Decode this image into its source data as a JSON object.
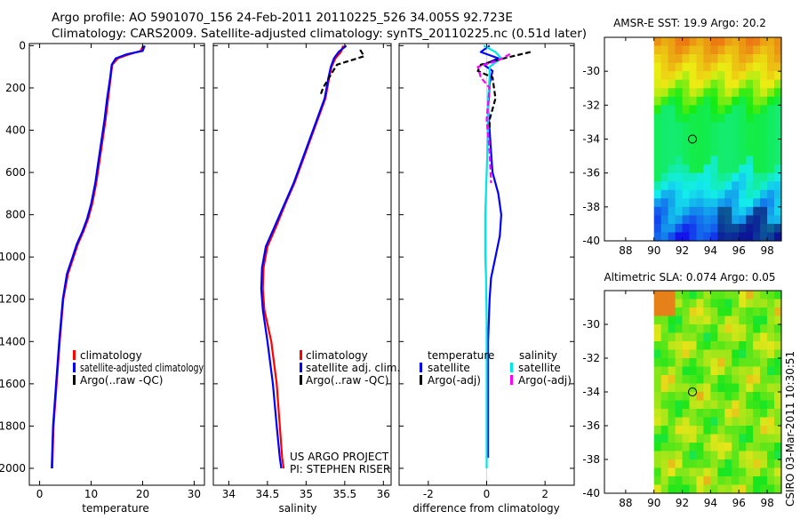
{
  "header": {
    "line1": "Argo profile: AO 5901070_156 24-Feb-2011 20110225_526 34.005S 92.723E",
    "line2": "Climatology: CARS2009. Satellite-adjusted climatology: synTS_20110225.nc (0.51d later)"
  },
  "colors": {
    "red": "#ff0000",
    "blue": "#0000ff",
    "black": "#000000",
    "cyan": "#00e5e5",
    "magenta": "#ff00ff"
  },
  "depth_axis": {
    "ticks": [
      0,
      200,
      400,
      600,
      800,
      1000,
      1200,
      1400,
      1600,
      1800,
      2000
    ],
    "range": [
      -10,
      2080
    ]
  },
  "chart_data": [
    {
      "type": "line",
      "id": "temperature",
      "xlabel": "temperature",
      "xticks": [
        0,
        10,
        20,
        30
      ],
      "xlim": [
        -2,
        32
      ],
      "legend": [
        "climatology",
        "satellite-adjusted climatology",
        "Argo(..raw -QC)"
      ],
      "series": [
        {
          "name": "climatology",
          "color": "red",
          "x": [
            20.1,
            19.6,
            17.5,
            15.2,
            14.1,
            13.8,
            13.3,
            12.8,
            12.2,
            11.6,
            11.0,
            10.2,
            9.4,
            8.5,
            7.4,
            6.6,
            5.5,
            4.6,
            3.9,
            3.3,
            2.7,
            2.45
          ],
          "y": [
            0,
            25,
            40,
            60,
            90,
            150,
            250,
            350,
            450,
            550,
            650,
            750,
            820,
            880,
            940,
            1000,
            1080,
            1200,
            1400,
            1600,
            1800,
            2000
          ]
        },
        {
          "name": "satellite",
          "color": "blue",
          "x": [
            20.4,
            20.0,
            17.0,
            14.8,
            14.0,
            13.7,
            13.1,
            12.6,
            12.0,
            11.4,
            10.8,
            10.0,
            9.2,
            8.3,
            7.2,
            6.4,
            5.3,
            4.5,
            3.8,
            3.2,
            2.6,
            2.35
          ],
          "y": [
            0,
            25,
            40,
            60,
            90,
            150,
            250,
            350,
            450,
            550,
            650,
            750,
            820,
            880,
            940,
            1000,
            1080,
            1200,
            1400,
            1600,
            1800,
            2000
          ]
        }
      ]
    },
    {
      "type": "line",
      "id": "salinity",
      "xlabel": "salinity",
      "xticks": [
        34,
        34.5,
        35,
        35.5,
        36
      ],
      "xlim": [
        33.8,
        36.1
      ],
      "legend": [
        "climatology",
        "satellite adj. clim.",
        "Argo(..raw -QC)"
      ],
      "series": [
        {
          "name": "climatology",
          "color": "red",
          "x": [
            35.48,
            35.45,
            35.38,
            35.33,
            35.3,
            35.25,
            35.15,
            35.05,
            34.95,
            34.85,
            34.73,
            34.62,
            34.5,
            34.45,
            34.44,
            34.46,
            34.55,
            34.62,
            34.66,
            34.69,
            34.71
          ],
          "y": [
            0,
            30,
            60,
            100,
            150,
            250,
            350,
            450,
            550,
            650,
            750,
            850,
            950,
            1050,
            1150,
            1250,
            1400,
            1600,
            1800,
            1950,
            2000
          ]
        },
        {
          "name": "satellite",
          "color": "blue",
          "x": [
            35.52,
            35.42,
            35.36,
            35.32,
            35.29,
            35.24,
            35.14,
            35.04,
            34.94,
            34.84,
            34.72,
            34.6,
            34.48,
            34.43,
            34.42,
            34.44,
            34.5,
            34.57,
            34.62,
            34.66,
            34.68
          ],
          "y": [
            0,
            30,
            60,
            100,
            150,
            250,
            350,
            450,
            550,
            650,
            750,
            850,
            950,
            1050,
            1150,
            1250,
            1400,
            1600,
            1800,
            1950,
            2000
          ]
        },
        {
          "name": "Argo",
          "color": "black",
          "dashed": true,
          "x": [
            35.7,
            35.75,
            35.4,
            35.3,
            35.22,
            35.18
          ],
          "y": [
            20,
            50,
            90,
            150,
            200,
            240
          ]
        }
      ],
      "credit": [
        "US ARGO PROJECT",
        "PI: STEPHEN RISER"
      ]
    },
    {
      "type": "line",
      "id": "difference",
      "xlabel": "difference from climatology",
      "xticks": [
        -2,
        0,
        2
      ],
      "xlim": [
        -3,
        3
      ],
      "legend": {
        "temperature_title": "temperature",
        "salinity_title": "salinity",
        "temp_items": [
          "satellite",
          "Argo(-adj)"
        ],
        "sal_items": [
          "satellite",
          "Argo(-adj)"
        ]
      },
      "series": [
        {
          "name": "temp satellite",
          "color": "blue",
          "x": [
            0.1,
            -0.2,
            0.4,
            -0.1,
            0.2,
            0.1,
            0.05,
            0.1,
            0.15,
            0.2,
            0.4,
            0.5,
            0.45,
            0.3,
            0.15,
            0.1,
            0.05,
            0.05,
            0.05,
            0.05
          ],
          "y": [
            0,
            30,
            60,
            90,
            120,
            180,
            300,
            400,
            500,
            600,
            700,
            800,
            900,
            1000,
            1100,
            1200,
            1400,
            1600,
            1800,
            1950
          ]
        },
        {
          "name": "sal satellite",
          "color": "cyan",
          "x": [
            -0.1,
            0.3,
            0.5,
            0.1,
            0.1,
            0.05,
            0.05,
            0.0,
            -0.05,
            -0.05,
            -0.05,
            -0.02,
            0.0,
            0.0,
            0.0,
            0.0,
            0.0
          ],
          "y": [
            0,
            30,
            60,
            100,
            150,
            250,
            400,
            600,
            800,
            900,
            1000,
            1100,
            1300,
            1500,
            1700,
            1900,
            2000
          ]
        },
        {
          "name": "temp Argo",
          "color": "black",
          "dashed": true,
          "x": [
            1.5,
            0.6,
            -0.2,
            -0.3,
            0.2,
            0.3,
            0.2,
            0.1,
            0.1
          ],
          "y": [
            30,
            60,
            90,
            120,
            150,
            250,
            300,
            350,
            400
          ]
        },
        {
          "name": "sal Argo",
          "color": "magenta",
          "dashed": true,
          "x": [
            0.8,
            0.4,
            -0.3,
            -0.2,
            0.1,
            0.0,
            0.1,
            0.15
          ],
          "y": [
            40,
            70,
            100,
            150,
            200,
            350,
            500,
            650
          ]
        }
      ]
    },
    {
      "type": "heatmap",
      "id": "sst",
      "title": "AMSR-E SST: 19.9 Argo: 20.2",
      "xticks": [
        88,
        90,
        92,
        94,
        96,
        98
      ],
      "yticks": [
        -30,
        -32,
        -34,
        -36,
        -38,
        -40
      ],
      "xlim": [
        86.5,
        99
      ],
      "ylim": [
        -40,
        -28
      ],
      "data_xlim": [
        90,
        99
      ],
      "marker": [
        92.72,
        -34.0
      ]
    },
    {
      "type": "heatmap",
      "id": "sla",
      "title": "Altimetric SLA: 0.074 Argo: 0.05",
      "xticks": [
        88,
        90,
        92,
        94,
        96,
        98
      ],
      "yticks": [
        -30,
        -32,
        -34,
        -36,
        -38,
        -40
      ],
      "xlim": [
        86.5,
        99
      ],
      "ylim": [
        -40,
        -28
      ],
      "data_xlim": [
        90,
        99
      ],
      "marker": [
        92.72,
        -34.0
      ]
    }
  ],
  "stamp": "CSIRO 03-Mar-2011 10:30:51"
}
